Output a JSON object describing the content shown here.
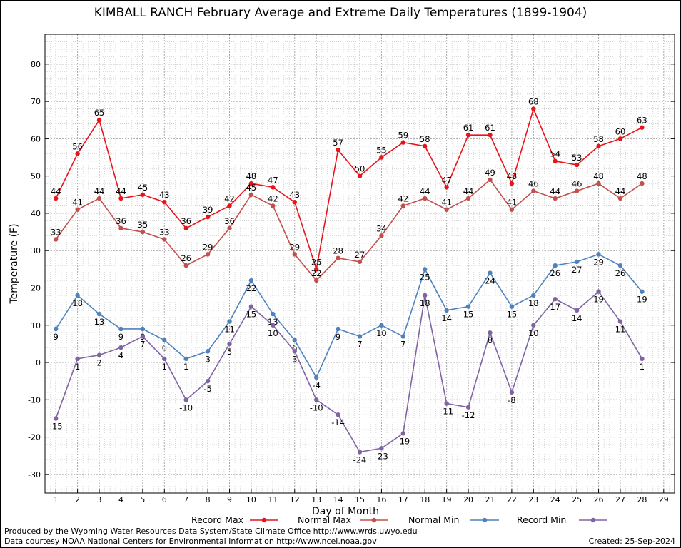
{
  "title": "KIMBALL RANCH February Average and Extreme Daily Temperatures (1899-1904)",
  "footer": {
    "credit_line_1": "Produced by the Wyoming Water Resources Data System/State Climate Office http://www.wrds.uwyo.edu",
    "credit_line_2": "Data courtesy NOAA National Centers for Environmental Information http://www.ncei.noaa.gov",
    "created": "Created:  25-Sep-2024"
  },
  "chart_data": {
    "type": "line",
    "xlabel": "Day of Month",
    "ylabel": "Temperature (F)",
    "xlim": [
      0.5,
      29.5
    ],
    "ylim": [
      -35,
      88
    ],
    "x_ticks": [
      1,
      2,
      3,
      4,
      5,
      6,
      7,
      8,
      9,
      10,
      11,
      12,
      13,
      14,
      15,
      16,
      17,
      18,
      19,
      20,
      21,
      22,
      23,
      24,
      25,
      26,
      27,
      28,
      29
    ],
    "y_ticks": [
      -30,
      -20,
      -10,
      0,
      10,
      20,
      30,
      40,
      50,
      60,
      70,
      80
    ],
    "grid": true,
    "legend_position": "bottom",
    "x": [
      1,
      2,
      3,
      4,
      5,
      6,
      7,
      8,
      9,
      10,
      11,
      12,
      13,
      14,
      15,
      16,
      17,
      18,
      19,
      20,
      21,
      22,
      23,
      24,
      25,
      26,
      27,
      28
    ],
    "series": [
      {
        "name": "Record Max",
        "color": "#e8141b",
        "label_pos": "above",
        "values": [
          44,
          56,
          65,
          44,
          45,
          43,
          36,
          39,
          42,
          48,
          47,
          43,
          25,
          57,
          50,
          55,
          59,
          58,
          47,
          61,
          61,
          48,
          68,
          54,
          53,
          58,
          60,
          63
        ]
      },
      {
        "name": "Normal Max",
        "color": "#c0504d",
        "label_pos": "above",
        "values": [
          33,
          41,
          44,
          36,
          35,
          33,
          26,
          29,
          36,
          45,
          42,
          29,
          22,
          28,
          27,
          34,
          42,
          44,
          41,
          44,
          49,
          41,
          46,
          44,
          46,
          48,
          44,
          48
        ]
      },
      {
        "name": "Normal Min",
        "color": "#4f81bd",
        "label_pos": "below",
        "values": [
          9,
          18,
          13,
          9,
          9,
          6,
          1,
          3,
          11,
          22,
          13,
          6,
          -4,
          9,
          7,
          10,
          7,
          25,
          14,
          15,
          24,
          15,
          18,
          26,
          27,
          29,
          26,
          19
        ]
      },
      {
        "name": "Record Min",
        "color": "#8064a2",
        "label_pos": "below",
        "values": [
          -15,
          1,
          2,
          4,
          7,
          1,
          -10,
          -5,
          5,
          15,
          10,
          3,
          -10,
          -14,
          -24,
          -23,
          -19,
          18,
          -11,
          -12,
          8,
          -8,
          10,
          17,
          14,
          19,
          11,
          1
        ]
      }
    ]
  }
}
